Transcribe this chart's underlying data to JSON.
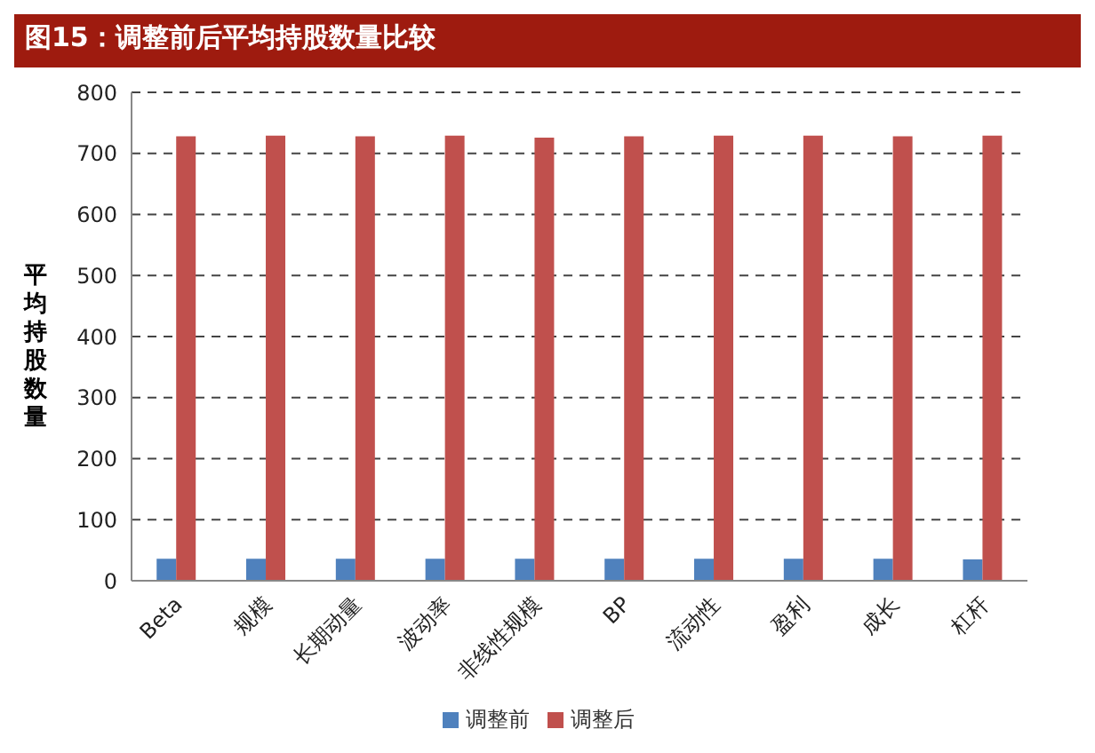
{
  "chart_data": {
    "type": "bar",
    "title": "图15：调整前后平均持股数量比较",
    "ylabel": "平均持股数量",
    "categories": [
      "Beta",
      "规模",
      "长期动量",
      "波动率",
      "非线性规模",
      "BP",
      "流动性",
      "盈利",
      "成长",
      "杠杆"
    ],
    "series": [
      {
        "name": "调整前",
        "color": "#4f81bd",
        "values": [
          36,
          36,
          36,
          36,
          36,
          36,
          36,
          36,
          36,
          35
        ]
      },
      {
        "name": "调整后",
        "color": "#c0504d",
        "values": [
          728,
          729,
          728,
          729,
          726,
          728,
          729,
          729,
          728,
          729
        ]
      }
    ],
    "ylim": [
      0,
      800
    ],
    "yticks": [
      0,
      100,
      200,
      300,
      400,
      500,
      600,
      700,
      800
    ],
    "grid": "y",
    "legend": "bottom"
  }
}
